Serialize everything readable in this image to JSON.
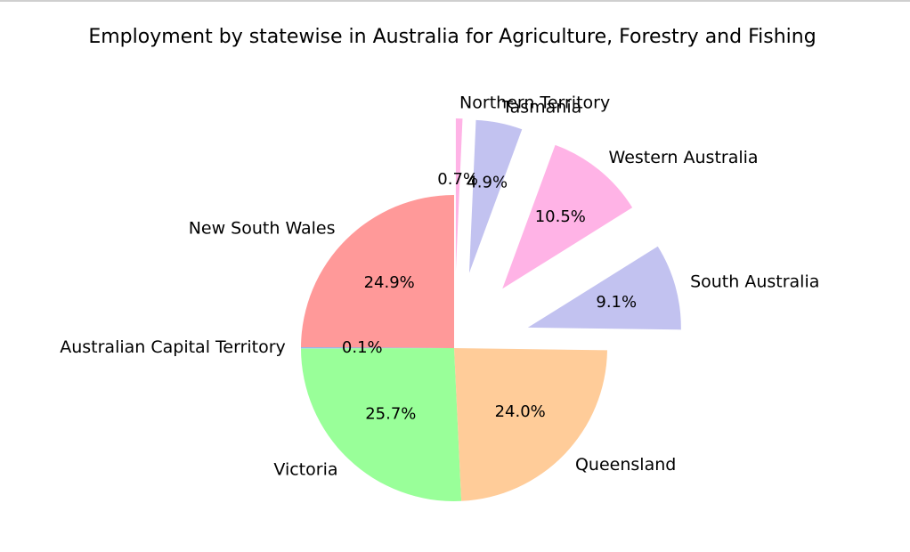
{
  "chart_data": {
    "type": "pie",
    "title": "Employment by statewise in Australia for Agriculture, Forestry and Fishing",
    "start_angle_deg": 90,
    "direction": "counterclockwise",
    "slices": [
      {
        "label": "New South Wales",
        "value": 24.9,
        "pct_label": "24.9%",
        "color": "#ff9999",
        "explode": 0
      },
      {
        "label": "Australian Capital Territory",
        "value": 0.1,
        "pct_label": "0.1%",
        "color": "#66b3ff",
        "explode": 0
      },
      {
        "label": "Victoria",
        "value": 25.7,
        "pct_label": "25.7%",
        "color": "#99ff99",
        "explode": 0
      },
      {
        "label": "Queensland",
        "value": 24.0,
        "pct_label": "24.0%",
        "color": "#ffcc99",
        "explode": 0
      },
      {
        "label": "South Australia",
        "value": 9.1,
        "pct_label": "9.1%",
        "color": "#c2c2f0",
        "explode": 0.5
      },
      {
        "label": "Western Australia",
        "value": 10.5,
        "pct_label": "10.5%",
        "color": "#ffb3e6",
        "explode": 0.5
      },
      {
        "label": "Tasmania",
        "value": 4.9,
        "pct_label": "4.9%",
        "color": "#c2c2f0",
        "explode": 0.5
      },
      {
        "label": "Northern Territory",
        "value": 0.7,
        "pct_label": "0.7%",
        "color": "#ffb3e6",
        "explode": 0.5
      }
    ]
  }
}
